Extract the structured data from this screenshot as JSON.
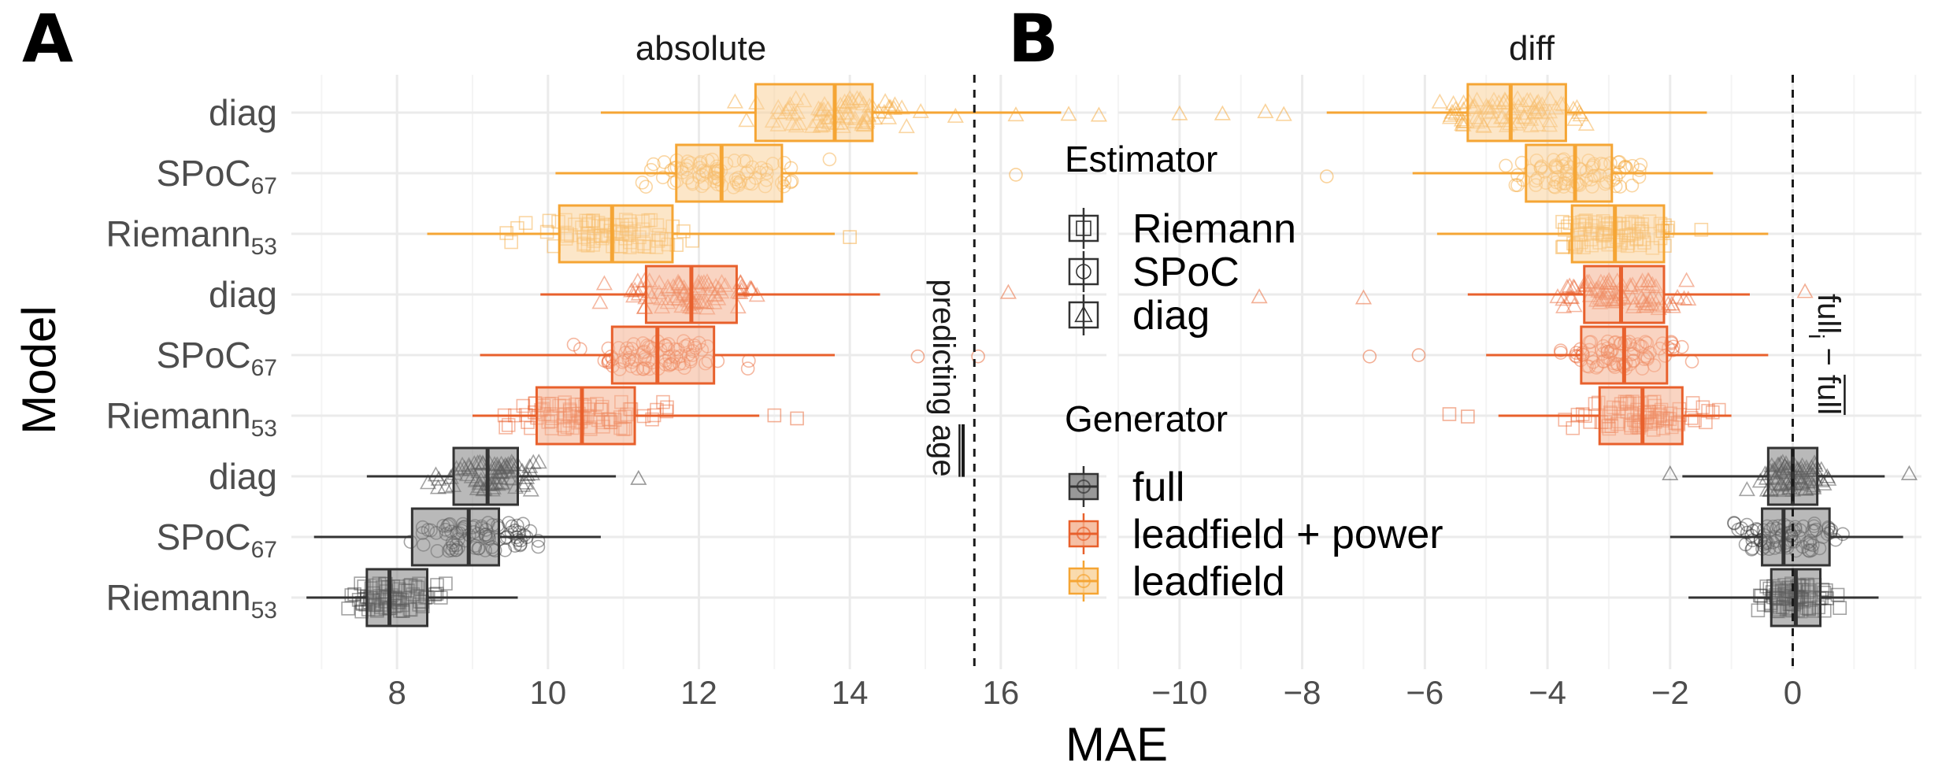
{
  "panels": [
    {
      "letter": "A",
      "title": "absolute"
    },
    {
      "letter": "B",
      "title": "diff"
    }
  ],
  "axes": {
    "x_title": "MAE",
    "y_title": "Model",
    "y_labels": [
      {
        "main": "diag",
        "sub": ""
      },
      {
        "main": "SPoC",
        "sub": "67"
      },
      {
        "main": "Riemann",
        "sub": "53"
      },
      {
        "main": "diag",
        "sub": ""
      },
      {
        "main": "SPoC",
        "sub": "67"
      },
      {
        "main": "Riemann",
        "sub": "53"
      },
      {
        "main": "diag",
        "sub": ""
      },
      {
        "main": "SPoC",
        "sub": "67"
      },
      {
        "main": "Riemann",
        "sub": "53"
      }
    ]
  },
  "reference_lines": {
    "A": {
      "value": 15.65,
      "label_main": "predicting",
      "label_bar": "age"
    },
    "B": {
      "value": 0,
      "label_main": "full",
      "label_sub": "i",
      "label_tail": " − ",
      "label_bar": "full"
    }
  },
  "legend": {
    "estimator_title": "Estimator",
    "estimator_items": [
      {
        "label": "Riemann",
        "shape": "square"
      },
      {
        "label": "SPoC",
        "shape": "circle"
      },
      {
        "label": "diag",
        "shape": "triangle"
      }
    ],
    "generator_title": "Generator",
    "generator_items": [
      {
        "label": "full",
        "color": "#333333",
        "fill": "#808080"
      },
      {
        "label": "leadfield + power",
        "color": "#e8602c",
        "fill": "#f4b08f"
      },
      {
        "label": "leadfield",
        "color": "#f5a534",
        "fill": "#f9d29a"
      }
    ]
  },
  "chart_data": [
    {
      "type": "boxplot",
      "title": "absolute",
      "xlabel": "MAE",
      "ylabel": "Model",
      "xlim": [
        6.6,
        17.4
      ],
      "xticks": [
        8,
        10,
        12,
        14,
        16
      ],
      "grid": true,
      "rows": [
        {
          "model": "diag",
          "estimator": "diag",
          "generator": "leadfield",
          "min": 10.7,
          "q1": 12.75,
          "median": 13.8,
          "q3": 14.3,
          "max": 16.8,
          "outliers": [
            15.4,
            16.2,
            16.9,
            17.3
          ]
        },
        {
          "model": "SPoC67",
          "estimator": "SPoC",
          "generator": "leadfield",
          "min": 10.1,
          "q1": 11.7,
          "median": 12.3,
          "q3": 13.1,
          "max": 14.9,
          "outliers": [
            16.2
          ]
        },
        {
          "model": "Riemann53",
          "estimator": "Riemann",
          "generator": "leadfield",
          "min": 8.4,
          "q1": 10.15,
          "median": 10.85,
          "q3": 11.65,
          "max": 13.8,
          "outliers": [
            14.0
          ]
        },
        {
          "model": "diag",
          "estimator": "diag",
          "generator": "leadfield + power",
          "min": 9.9,
          "q1": 11.3,
          "median": 11.9,
          "q3": 12.5,
          "max": 14.4,
          "outliers": [
            16.1
          ]
        },
        {
          "model": "SPoC67",
          "estimator": "SPoC",
          "generator": "leadfield + power",
          "min": 9.1,
          "q1": 10.85,
          "median": 11.45,
          "q3": 12.2,
          "max": 13.8,
          "outliers": [
            14.9,
            15.7
          ]
        },
        {
          "model": "Riemann53",
          "estimator": "Riemann",
          "generator": "leadfield + power",
          "min": 9.0,
          "q1": 9.85,
          "median": 10.45,
          "q3": 11.15,
          "max": 12.8,
          "outliers": [
            13.0,
            13.3
          ]
        },
        {
          "model": "diag",
          "estimator": "diag",
          "generator": "full",
          "min": 7.6,
          "q1": 8.75,
          "median": 9.2,
          "q3": 9.6,
          "max": 10.9,
          "outliers": [
            11.2
          ]
        },
        {
          "model": "SPoC67",
          "estimator": "SPoC",
          "generator": "full",
          "min": 6.9,
          "q1": 8.2,
          "median": 8.95,
          "q3": 9.35,
          "max": 10.7,
          "outliers": []
        },
        {
          "model": "Riemann53",
          "estimator": "Riemann",
          "generator": "full",
          "min": 6.8,
          "q1": 7.6,
          "median": 7.9,
          "q3": 8.4,
          "max": 9.6,
          "outliers": []
        }
      ]
    },
    {
      "type": "boxplot",
      "title": "diff",
      "xlabel": "MAE",
      "ylabel": "Model",
      "xlim": [
        -11.0,
        2.1
      ],
      "xticks": [
        -10,
        -8,
        -6,
        -4,
        -2,
        0
      ],
      "grid": true,
      "rows": [
        {
          "model": "diag",
          "estimator": "diag",
          "generator": "leadfield",
          "min": -7.6,
          "q1": -5.3,
          "median": -4.6,
          "q3": -3.7,
          "max": -1.4,
          "outliers": [
            -10.0,
            -9.3,
            -8.6,
            -8.3
          ]
        },
        {
          "model": "SPoC67",
          "estimator": "SPoC",
          "generator": "leadfield",
          "min": -6.2,
          "q1": -4.35,
          "median": -3.55,
          "q3": -2.95,
          "max": -1.3,
          "outliers": [
            -7.6
          ]
        },
        {
          "model": "Riemann53",
          "estimator": "Riemann",
          "generator": "leadfield",
          "min": -5.8,
          "q1": -3.6,
          "median": -2.9,
          "q3": -2.1,
          "max": -0.4,
          "outliers": []
        },
        {
          "model": "diag",
          "estimator": "diag",
          "generator": "leadfield + power",
          "min": -5.3,
          "q1": -3.4,
          "median": -2.8,
          "q3": -2.1,
          "max": -0.7,
          "outliers": [
            -7.0,
            -8.7,
            0.2
          ]
        },
        {
          "model": "SPoC67",
          "estimator": "SPoC",
          "generator": "leadfield + power",
          "min": -5.0,
          "q1": -3.45,
          "median": -2.75,
          "q3": -2.05,
          "max": -0.4,
          "outliers": [
            -6.9,
            -6.1
          ]
        },
        {
          "model": "Riemann53",
          "estimator": "Riemann",
          "generator": "leadfield + power",
          "min": -4.8,
          "q1": -3.15,
          "median": -2.45,
          "q3": -1.8,
          "max": -1.0,
          "outliers": [
            -5.6,
            -5.3
          ]
        },
        {
          "model": "diag",
          "estimator": "diag",
          "generator": "full",
          "min": -1.8,
          "q1": -0.4,
          "median": 0.0,
          "q3": 0.4,
          "max": 1.5,
          "outliers": [
            -2.0,
            1.9
          ]
        },
        {
          "model": "SPoC67",
          "estimator": "SPoC",
          "generator": "full",
          "min": -2.0,
          "q1": -0.5,
          "median": -0.15,
          "q3": 0.6,
          "max": 1.8,
          "outliers": []
        },
        {
          "model": "Riemann53",
          "estimator": "Riemann",
          "generator": "full",
          "min": -1.7,
          "q1": -0.35,
          "median": 0.05,
          "q3": 0.45,
          "max": 1.4,
          "outliers": []
        }
      ]
    }
  ]
}
